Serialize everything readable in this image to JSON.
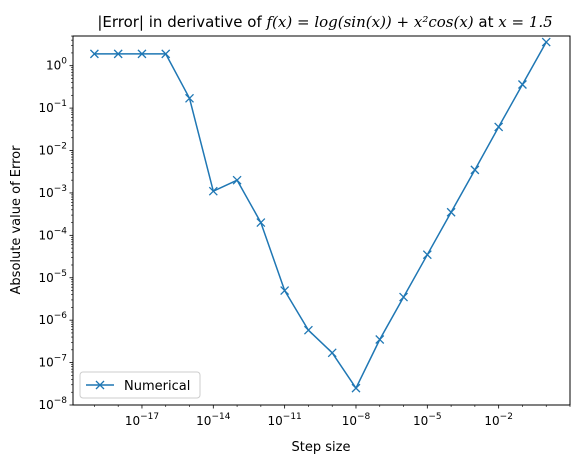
{
  "chart_data": {
    "type": "line",
    "title": {
      "prefix": "|Error| in derivative of ",
      "math": "f(x) = log(sin(x)) + x²cos(x)",
      "middle": " at ",
      "point": "x = 1.5"
    },
    "xlabel": "Step size",
    "ylabel": "Absolute value of Error",
    "xscale": "log",
    "yscale": "log",
    "xlim_exp": [
      -19.9,
      1.0
    ],
    "ylim_exp": [
      -8.0,
      0.7
    ],
    "x_ticks": [
      {
        "exp": -17,
        "label": "10",
        "sup": "−17"
      },
      {
        "exp": -14,
        "label": "10",
        "sup": "−14"
      },
      {
        "exp": -11,
        "label": "10",
        "sup": "−11"
      },
      {
        "exp": -8,
        "label": "10",
        "sup": "−8"
      },
      {
        "exp": -5,
        "label": "10",
        "sup": "−5"
      },
      {
        "exp": -2,
        "label": "10",
        "sup": "−2"
      }
    ],
    "y_ticks": [
      {
        "exp": -8,
        "label": "10",
        "sup": "−8"
      },
      {
        "exp": -7,
        "label": "10",
        "sup": "−7"
      },
      {
        "exp": -6,
        "label": "10",
        "sup": "−6"
      },
      {
        "exp": -5,
        "label": "10",
        "sup": "−5"
      },
      {
        "exp": -4,
        "label": "10",
        "sup": "−4"
      },
      {
        "exp": -3,
        "label": "10",
        "sup": "−3"
      },
      {
        "exp": -2,
        "label": "10",
        "sup": "−2"
      },
      {
        "exp": -1,
        "label": "10",
        "sup": "−1"
      },
      {
        "exp": 0,
        "label": "10",
        "sup": "0"
      }
    ],
    "grid": false,
    "legend_position": "lower-left",
    "series": [
      {
        "name": "Numerical",
        "color": "#1f77b4",
        "marker": "x",
        "x": [
          1e-19,
          1e-18,
          1e-17,
          1e-16,
          1e-15,
          1e-14,
          1e-13,
          1e-12,
          1e-11,
          1e-10,
          1e-09,
          1e-08,
          1e-07,
          1e-06,
          1e-05,
          0.0001,
          0.001,
          0.01,
          0.1,
          1
        ],
        "y": [
          1.9,
          1.9,
          1.9,
          1.9,
          0.17,
          0.0011,
          0.002,
          0.0002,
          5e-06,
          5.8e-07,
          1.7e-07,
          2.5e-08,
          3.5e-07,
          3.5e-06,
          3.5e-05,
          0.00035,
          0.0035,
          0.036,
          0.36,
          3.6
        ]
      }
    ]
  }
}
